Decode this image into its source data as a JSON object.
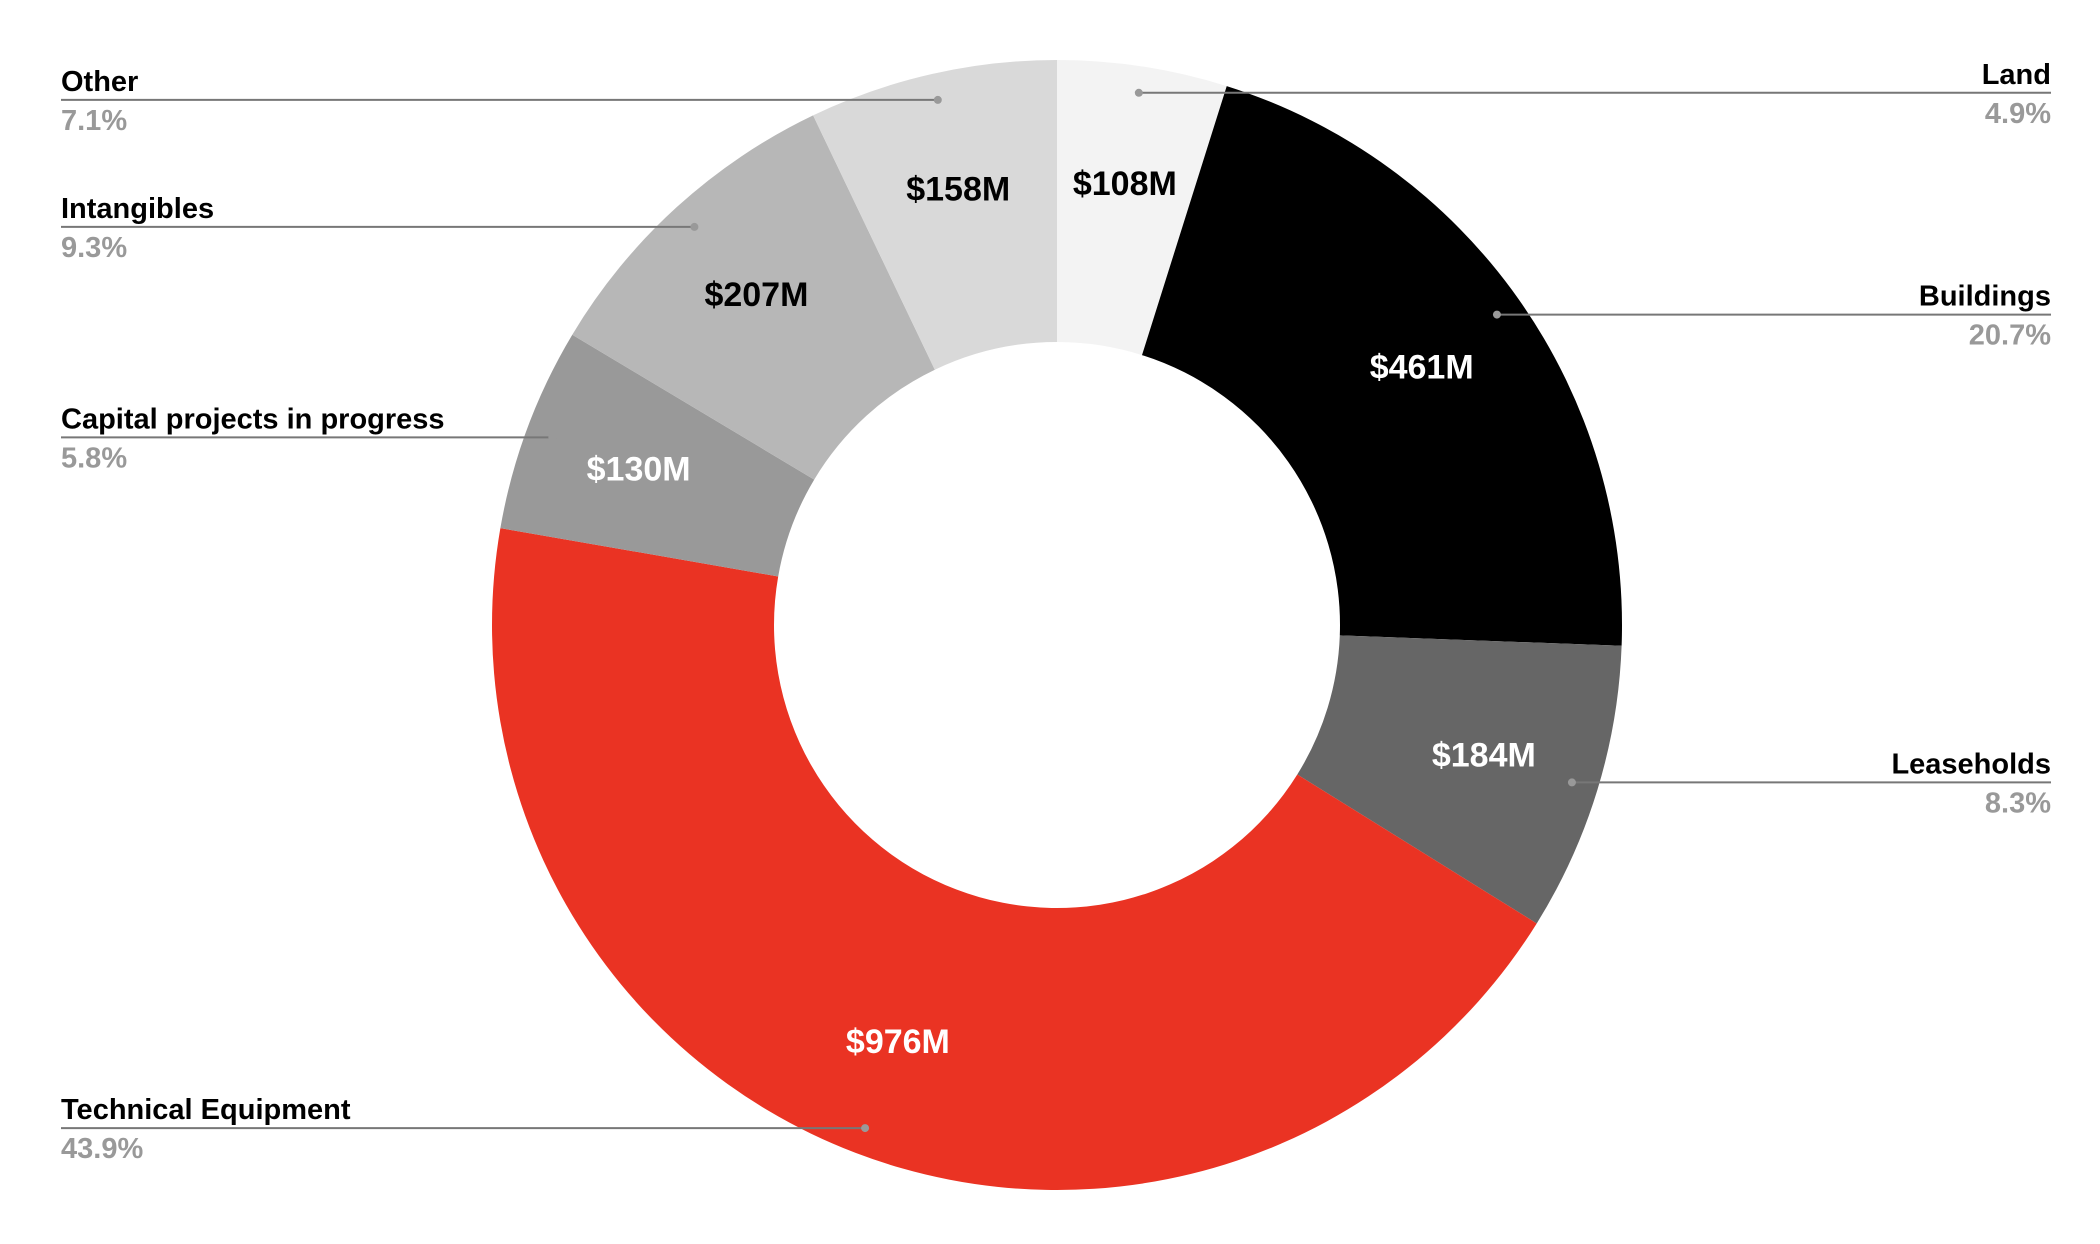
{
  "chart_data": {
    "type": "pie",
    "donut": true,
    "title": "",
    "start": "top",
    "direction": "clockwise",
    "slices": [
      {
        "label": "Land",
        "value": 108,
        "value_label": "$108M",
        "percent": "4.9%",
        "color": "#f3f3f3",
        "text_color": "#000000",
        "side": "right"
      },
      {
        "label": "Buildings",
        "value": 461,
        "value_label": "$461M",
        "percent": "20.7%",
        "color": "#000000",
        "text_color": "#ffffff",
        "side": "right"
      },
      {
        "label": "Leaseholds",
        "value": 184,
        "value_label": "$184M",
        "percent": "8.3%",
        "color": "#666666",
        "text_color": "#ffffff",
        "side": "right"
      },
      {
        "label": "Technical Equipment",
        "value": 976,
        "value_label": "$976M",
        "percent": "43.9%",
        "color": "#ea3323",
        "text_color": "#ffffff",
        "side": "left"
      },
      {
        "label": "Capital projects in progress",
        "value": 130,
        "value_label": "$130M",
        "percent": "5.8%",
        "color": "#999999",
        "text_color": "#ffffff",
        "side": "left"
      },
      {
        "label": "Intangibles",
        "value": 207,
        "value_label": "$207M",
        "percent": "9.3%",
        "color": "#b7b7b7",
        "text_color": "#000000",
        "side": "left"
      },
      {
        "label": "Other",
        "value": 158,
        "value_label": "$158M",
        "percent": "7.1%",
        "color": "#d9d9d9",
        "text_color": "#000000",
        "side": "left"
      }
    ],
    "legend": "leader-line labels on both sides"
  }
}
